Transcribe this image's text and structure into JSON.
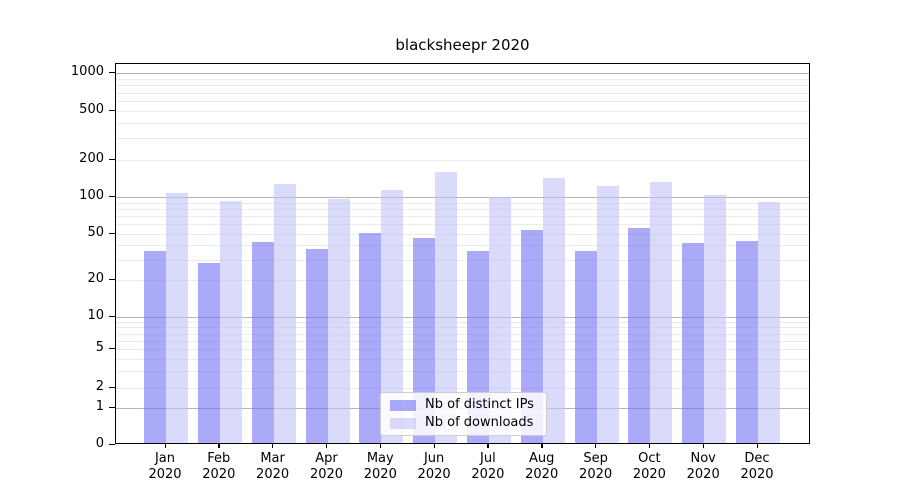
{
  "chart_data": {
    "type": "bar",
    "title": "blacksheepr 2020",
    "x_tick_months": [
      "Jan",
      "Feb",
      "Mar",
      "Apr",
      "May",
      "Jun",
      "Jul",
      "Aug",
      "Sep",
      "Oct",
      "Nov",
      "Dec"
    ],
    "x_tick_year": "2020",
    "series": [
      {
        "name": "Nb of distinct IPs",
        "color": "#7171f3",
        "alpha": 0.6,
        "values": [
          34,
          27,
          41,
          36,
          49,
          44,
          34,
          52,
          34,
          54,
          40,
          42
        ]
      },
      {
        "name": "Nb of downloads",
        "color": "#c1c1f7",
        "alpha": 0.6,
        "values": [
          104,
          89,
          123,
          93,
          110,
          154,
          96,
          138,
          118,
          128,
          101,
          88
        ]
      }
    ],
    "yscale": "symlog",
    "yticks": [
      0,
      1,
      2,
      5,
      10,
      20,
      50,
      100,
      200,
      500,
      1000
    ],
    "minor_gridlines": [
      2,
      3,
      4,
      5,
      6,
      7,
      8,
      9,
      20,
      30,
      40,
      50,
      60,
      70,
      80,
      90,
      200,
      300,
      400,
      500,
      600,
      700,
      800,
      900
    ],
    "major_gridlines": [
      1,
      10,
      100,
      1000
    ],
    "ylim": [
      0,
      1200
    ],
    "grid": true,
    "legend_position": "lower center"
  }
}
